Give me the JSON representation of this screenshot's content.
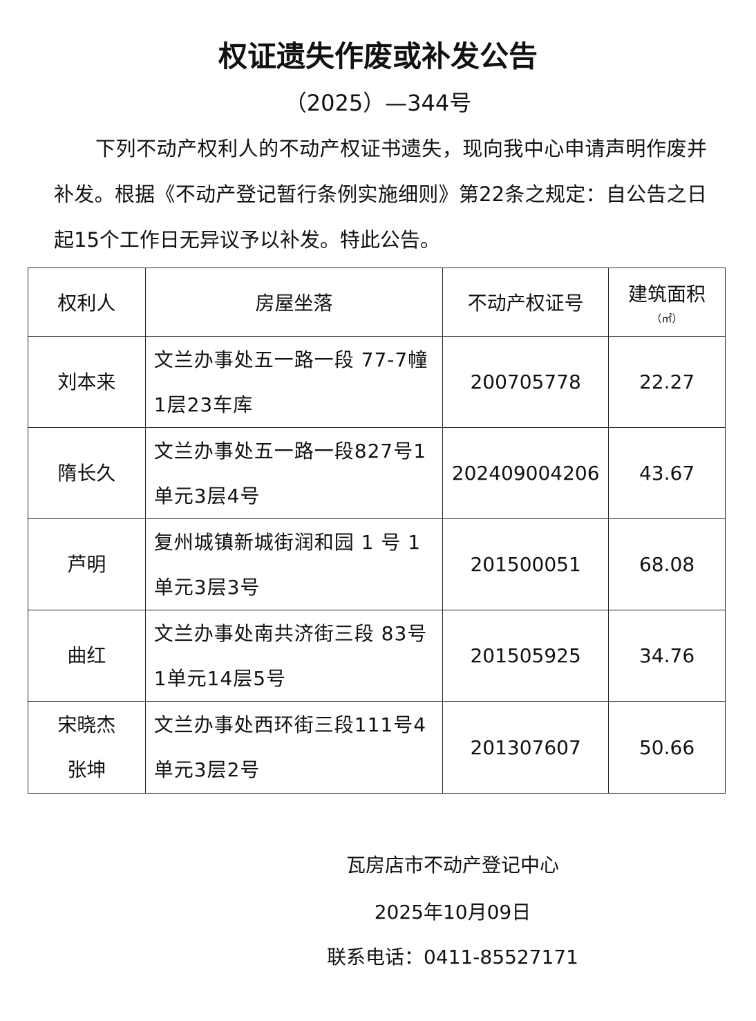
{
  "title": "权证遗失作废或补发公告",
  "number": "（2025）—344号",
  "body": "下列不动产权利人的不动产权证书遗失，现向我中心申请声明作废并补发。根据《不动产登记暂行条例实施细则》第22条之规定：自公告之日起15个工作日无异议予以补发。特此公告。",
  "table": {
    "headers": [
      "权利人",
      "房屋坐落",
      "不动产权证号",
      "建筑面积"
    ],
    "area_unit": "（㎡）",
    "rows": [
      {
        "owner": "刘本来",
        "address": "文兰办事处五一路一段 77-7幢1层23车库",
        "cert": "200705778",
        "area": "22.27"
      },
      {
        "owner": "隋长久",
        "address": "文兰办事处五一路一段827号1单元3层4号",
        "cert": "202409004206",
        "area": "43.67"
      },
      {
        "owner": "芦明",
        "address": "复州城镇新城街润和园 1 号 1单元3层3号",
        "cert": "201500051",
        "area": "68.08"
      },
      {
        "owner": "曲红",
        "address": "文兰办事处南共济街三段 83号1单元14层5号",
        "cert": "201505925",
        "area": "34.76"
      },
      {
        "owner": "宋晓杰\n张坤",
        "address": "文兰办事处西环街三段111号4单元3层2号",
        "cert": "201307607",
        "area": "50.66"
      }
    ]
  },
  "footer": {
    "org": "瓦房店市不动产登记中心",
    "date": "2025年10月09日",
    "phone": "联系电话：0411-85527171"
  }
}
